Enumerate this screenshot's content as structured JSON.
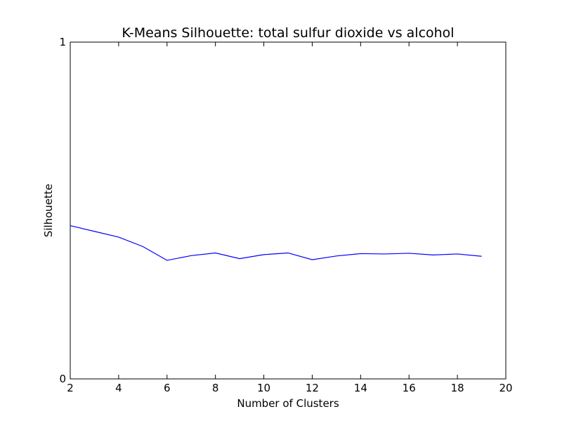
{
  "chart_data": {
    "type": "line",
    "title": "K-Means Silhouette: total sulfur dioxide vs alcohol",
    "xlabel": "Number of Clusters",
    "ylabel": "Silhouette",
    "xlim": [
      2,
      20
    ],
    "ylim": [
      0,
      1
    ],
    "xticks": [
      2,
      4,
      6,
      8,
      10,
      12,
      14,
      16,
      18,
      20
    ],
    "yticks": [
      0,
      1
    ],
    "grid": false,
    "legend": "none",
    "series": [
      {
        "color": "#0000ff",
        "x": [
          2,
          3,
          4,
          5,
          6,
          7,
          8,
          9,
          10,
          11,
          12,
          13,
          14,
          15,
          16,
          17,
          18,
          19
        ],
        "values": [
          0.455,
          0.438,
          0.421,
          0.393,
          0.352,
          0.366,
          0.374,
          0.357,
          0.369,
          0.374,
          0.354,
          0.365,
          0.372,
          0.371,
          0.373,
          0.368,
          0.371,
          0.364
        ]
      }
    ]
  }
}
